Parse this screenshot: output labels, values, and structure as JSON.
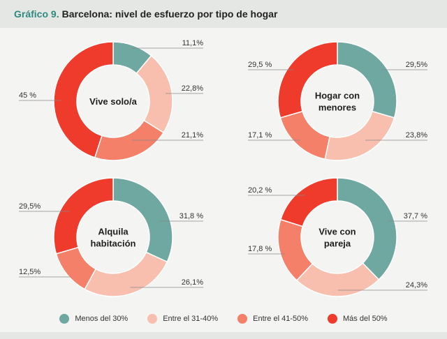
{
  "title": {
    "prefix": "Gráfico 9.",
    "text": "Barcelona: nivel de esfuerzo por tipo de hogar"
  },
  "colors": {
    "Menos del 30%": "#6fa8a0",
    "Entre el 31-40%": "#f9bfae",
    "Entre el 41-50%": "#f4806a",
    "Más del 50%": "#ef3b2c"
  },
  "legend": [
    {
      "label": "Menos del 30%",
      "color": "#6fa8a0"
    },
    {
      "label": "Entre el 31-40%",
      "color": "#f9bfae"
    },
    {
      "label": "Entre el 41-50%",
      "color": "#f4806a"
    },
    {
      "label": "Más del 50%",
      "color": "#ef3b2c"
    }
  ],
  "chart_data": [
    {
      "type": "pie",
      "donut": true,
      "title": "Vive solo/a",
      "title_lines": [
        "Vive solo/a"
      ],
      "categories": [
        "Menos del 30%",
        "Entre el 31-40%",
        "Entre el 41-50%",
        "Más del 50%"
      ],
      "values": [
        11.1,
        22.8,
        21.1,
        45
      ],
      "labels": [
        "11,1%",
        "22,8%",
        "21,1%",
        "45 %"
      ]
    },
    {
      "type": "pie",
      "donut": true,
      "title": "Hogar con menores",
      "title_lines": [
        "Hogar con",
        "menores"
      ],
      "categories": [
        "Menos del 30%",
        "Entre el 31-40%",
        "Entre el 41-50%",
        "Más del 50%"
      ],
      "values": [
        29.5,
        23.8,
        17.1,
        29.5
      ],
      "labels": [
        "29,5%",
        "23,8%",
        "17,1 %",
        "29,5 %"
      ]
    },
    {
      "type": "pie",
      "donut": true,
      "title": "Alquila habitación",
      "title_lines": [
        "Alquila",
        "habitación"
      ],
      "categories": [
        "Menos del 30%",
        "Entre el 31-40%",
        "Entre el 41-50%",
        "Más del 50%"
      ],
      "values": [
        31.8,
        26.1,
        12.5,
        29.5
      ],
      "labels": [
        "31,8 %",
        "26,1%",
        "12,5%",
        "29,5%"
      ]
    },
    {
      "type": "pie",
      "donut": true,
      "title": "Vive con pareja",
      "title_lines": [
        "Vive con",
        "pareja"
      ],
      "categories": [
        "Menos del 30%",
        "Entre el 31-40%",
        "Entre el 41-50%",
        "Más del 50%"
      ],
      "values": [
        37.7,
        24.3,
        17.8,
        20.2
      ],
      "labels": [
        "37,7 %",
        "24,3%",
        "17,8 %",
        "20,2 %"
      ]
    }
  ]
}
